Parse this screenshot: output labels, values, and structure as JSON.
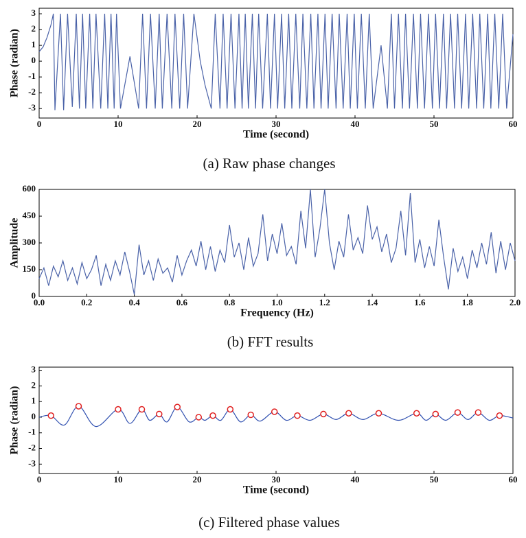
{
  "chart_data": [
    {
      "type": "line",
      "caption": "(a) Raw phase changes",
      "xlabel": "Time (second)",
      "ylabel": "Phase (radian)",
      "xlim": [
        0,
        60
      ],
      "xticks": [
        0,
        10,
        20,
        30,
        40,
        50,
        60
      ],
      "ylim": [
        -3.6,
        3.35
      ],
      "yticks": [
        -3,
        -2,
        -1,
        0,
        1,
        2,
        3
      ],
      "x": [
        0,
        0.5,
        1,
        1.5,
        1.8,
        2,
        2.7,
        3.1,
        3.6,
        4.2,
        4.7,
        5.1,
        5.5,
        5.9,
        6.4,
        6.8,
        7.2,
        7.8,
        8.3,
        8.7,
        9.1,
        9.5,
        9.8,
        10.3,
        11.5,
        12.6,
        13.1,
        13.6,
        14.1,
        14.7,
        15.2,
        15.6,
        16.2,
        16.8,
        17.2,
        17.8,
        18.3,
        18.8,
        19.6,
        20.4,
        21,
        21.8,
        22.3,
        22.9,
        23.3,
        23.8,
        24.3,
        24.8,
        25.3,
        25.7,
        26.1,
        26.5,
        27,
        27.4,
        27.8,
        28.3,
        28.9,
        29.3,
        29.8,
        30.2,
        30.7,
        31.1,
        31.6,
        32,
        32.5,
        33,
        33.4,
        33.9,
        34.4,
        34.8,
        35.3,
        35.7,
        36.2,
        36.6,
        37.1,
        37.6,
        38,
        38.5,
        39,
        39.4,
        39.9,
        40.3,
        40.8,
        41.3,
        41.8,
        42.3,
        43.3,
        44.1,
        44.6,
        45,
        45.5,
        46,
        46.4,
        46.9,
        47.4,
        47.9,
        48.3,
        48.8,
        49.3,
        49.8,
        50.2,
        50.7,
        51.2,
        51.6,
        52.1,
        52.6,
        53,
        53.5,
        54,
        54.4,
        54.9,
        55.4,
        55.8,
        56.3,
        56.8,
        57.2,
        57.7,
        58.2,
        58.7,
        59.2,
        60
      ],
      "series": [
        {
          "color": "#4a62a8",
          "values": [
            0.6,
            0.9,
            1.5,
            2.3,
            3,
            -3.1,
            3,
            -3.1,
            3,
            -2.9,
            3,
            -3,
            3,
            -3,
            3,
            -3,
            3,
            -3,
            3,
            -3,
            3,
            -3,
            3,
            -3,
            0.3,
            -3,
            3,
            -3,
            3,
            -3,
            3,
            -3,
            3,
            -3,
            3,
            -3,
            3,
            -3,
            3,
            0,
            -1.5,
            -3,
            3,
            -3,
            3,
            -3,
            3,
            -3,
            3,
            -3,
            3,
            -3,
            3,
            -3,
            3,
            -3,
            3,
            -3,
            3,
            -3,
            3,
            -3,
            3,
            -3,
            3,
            -3,
            3,
            -3,
            3,
            -3,
            3,
            -3,
            3,
            -3,
            3,
            -3,
            3,
            -3,
            3,
            -3,
            3,
            -3,
            3,
            -3,
            3,
            -3,
            1,
            -3,
            3,
            -3,
            3,
            -3,
            3,
            -3,
            3,
            -3,
            3,
            -3,
            3,
            -3,
            3,
            -3,
            3,
            -3,
            3,
            -3,
            3,
            -3,
            3,
            -3,
            3,
            -3,
            3,
            -3,
            3,
            -3,
            3,
            -3,
            3,
            -3,
            1.7
          ]
        }
      ]
    },
    {
      "type": "line",
      "caption": "(b) FFT results",
      "xlabel": "Frequency (Hz)",
      "ylabel": "Amplitude",
      "xlim": [
        0,
        2
      ],
      "xticks": [
        {
          "value": 0,
          "label": "0.0"
        },
        0.2,
        0.4,
        0.6,
        0.8,
        {
          "value": 1,
          "label": "1.0"
        },
        1.2,
        1.4,
        1.6,
        1.8,
        {
          "value": 2,
          "label": "2.0"
        }
      ],
      "ylim": [
        0,
        600
      ],
      "yticks": [
        0,
        150,
        300,
        450,
        600
      ],
      "x": [
        0,
        0.02,
        0.04,
        0.06,
        0.08,
        0.1,
        0.12,
        0.14,
        0.16,
        0.18,
        0.2,
        0.22,
        0.24,
        0.26,
        0.28,
        0.3,
        0.32,
        0.34,
        0.36,
        0.38,
        0.4,
        0.42,
        0.44,
        0.46,
        0.48,
        0.5,
        0.52,
        0.54,
        0.56,
        0.58,
        0.6,
        0.62,
        0.64,
        0.66,
        0.68,
        0.7,
        0.72,
        0.74,
        0.76,
        0.78,
        0.8,
        0.82,
        0.84,
        0.86,
        0.88,
        0.9,
        0.92,
        0.94,
        0.96,
        0.98,
        1,
        1.02,
        1.04,
        1.06,
        1.08,
        1.1,
        1.12,
        1.14,
        1.16,
        1.18,
        1.2,
        1.22,
        1.24,
        1.26,
        1.28,
        1.3,
        1.32,
        1.34,
        1.36,
        1.38,
        1.4,
        1.42,
        1.44,
        1.46,
        1.48,
        1.5,
        1.52,
        1.54,
        1.56,
        1.58,
        1.6,
        1.62,
        1.64,
        1.66,
        1.68,
        1.7,
        1.72,
        1.74,
        1.76,
        1.78,
        1.8,
        1.82,
        1.84,
        1.86,
        1.88,
        1.9,
        1.92,
        1.94,
        1.96,
        1.98,
        2
      ],
      "series": [
        {
          "color": "#4a62a8",
          "values": [
            100,
            160,
            60,
            170,
            110,
            200,
            90,
            160,
            70,
            190,
            100,
            150,
            230,
            60,
            180,
            90,
            200,
            120,
            250,
            140,
            10,
            290,
            120,
            200,
            90,
            210,
            130,
            160,
            80,
            230,
            120,
            200,
            260,
            170,
            310,
            150,
            280,
            140,
            260,
            190,
            400,
            220,
            300,
            150,
            330,
            170,
            240,
            460,
            200,
            350,
            240,
            410,
            230,
            280,
            180,
            480,
            270,
            600,
            220,
            380,
            600,
            300,
            150,
            310,
            220,
            460,
            260,
            330,
            240,
            510,
            320,
            390,
            250,
            350,
            190,
            270,
            480,
            230,
            580,
            190,
            320,
            160,
            280,
            170,
            430,
            220,
            40,
            270,
            140,
            220,
            100,
            260,
            160,
            300,
            180,
            360,
            130,
            310,
            150,
            300,
            200
          ]
        }
      ]
    },
    {
      "type": "line",
      "caption": "(c) Filtered phase values",
      "xlabel": "Time (second)",
      "ylabel": "Phase (radian)",
      "xlim": [
        0,
        60
      ],
      "xticks": [
        0,
        10,
        20,
        30,
        40,
        50,
        60
      ],
      "ylim": [
        -3.6,
        3.2
      ],
      "yticks": [
        -3,
        -2,
        -1,
        0,
        1,
        2,
        3
      ],
      "x": [
        0,
        1.5,
        3.2,
        5,
        7.2,
        10,
        11.5,
        13,
        14,
        15.2,
        16.2,
        17.5,
        19,
        20.2,
        21,
        22,
        23,
        24.2,
        25.5,
        26.8,
        28,
        29.8,
        31.3,
        32.7,
        34.3,
        36,
        37.6,
        39.2,
        41,
        43,
        45.5,
        47.8,
        49,
        50.2,
        51.5,
        53,
        54.3,
        55.6,
        57,
        58.3,
        60
      ],
      "series": [
        {
          "color": "#3050b0",
          "values": [
            0,
            0.1,
            -0.5,
            0.7,
            -0.6,
            0.5,
            -0.4,
            0.5,
            -0.2,
            0.2,
            -0.3,
            0.65,
            -0.3,
            0,
            -0.2,
            0.1,
            -0.2,
            0.5,
            -0.3,
            0.15,
            -0.25,
            0.35,
            -0.2,
            0.1,
            -0.2,
            0.2,
            -0.15,
            0.25,
            -0.15,
            0.25,
            -0.2,
            0.25,
            -0.2,
            0.2,
            -0.2,
            0.3,
            -0.15,
            0.3,
            -0.2,
            0.1,
            -0.05
          ]
        }
      ],
      "markers": {
        "color": "#e02020",
        "x": [
          1.5,
          5,
          10,
          13,
          15.2,
          17.5,
          20.2,
          22,
          24.2,
          26.8,
          29.8,
          32.7,
          36,
          39.2,
          43,
          47.8,
          50.2,
          53,
          55.6,
          58.3
        ],
        "values": [
          0.1,
          0.7,
          0.5,
          0.5,
          0.2,
          0.65,
          0,
          0.1,
          0.5,
          0.15,
          0.35,
          0.1,
          0.2,
          0.25,
          0.25,
          0.25,
          0.2,
          0.3,
          0.3,
          0.1
        ]
      }
    }
  ]
}
